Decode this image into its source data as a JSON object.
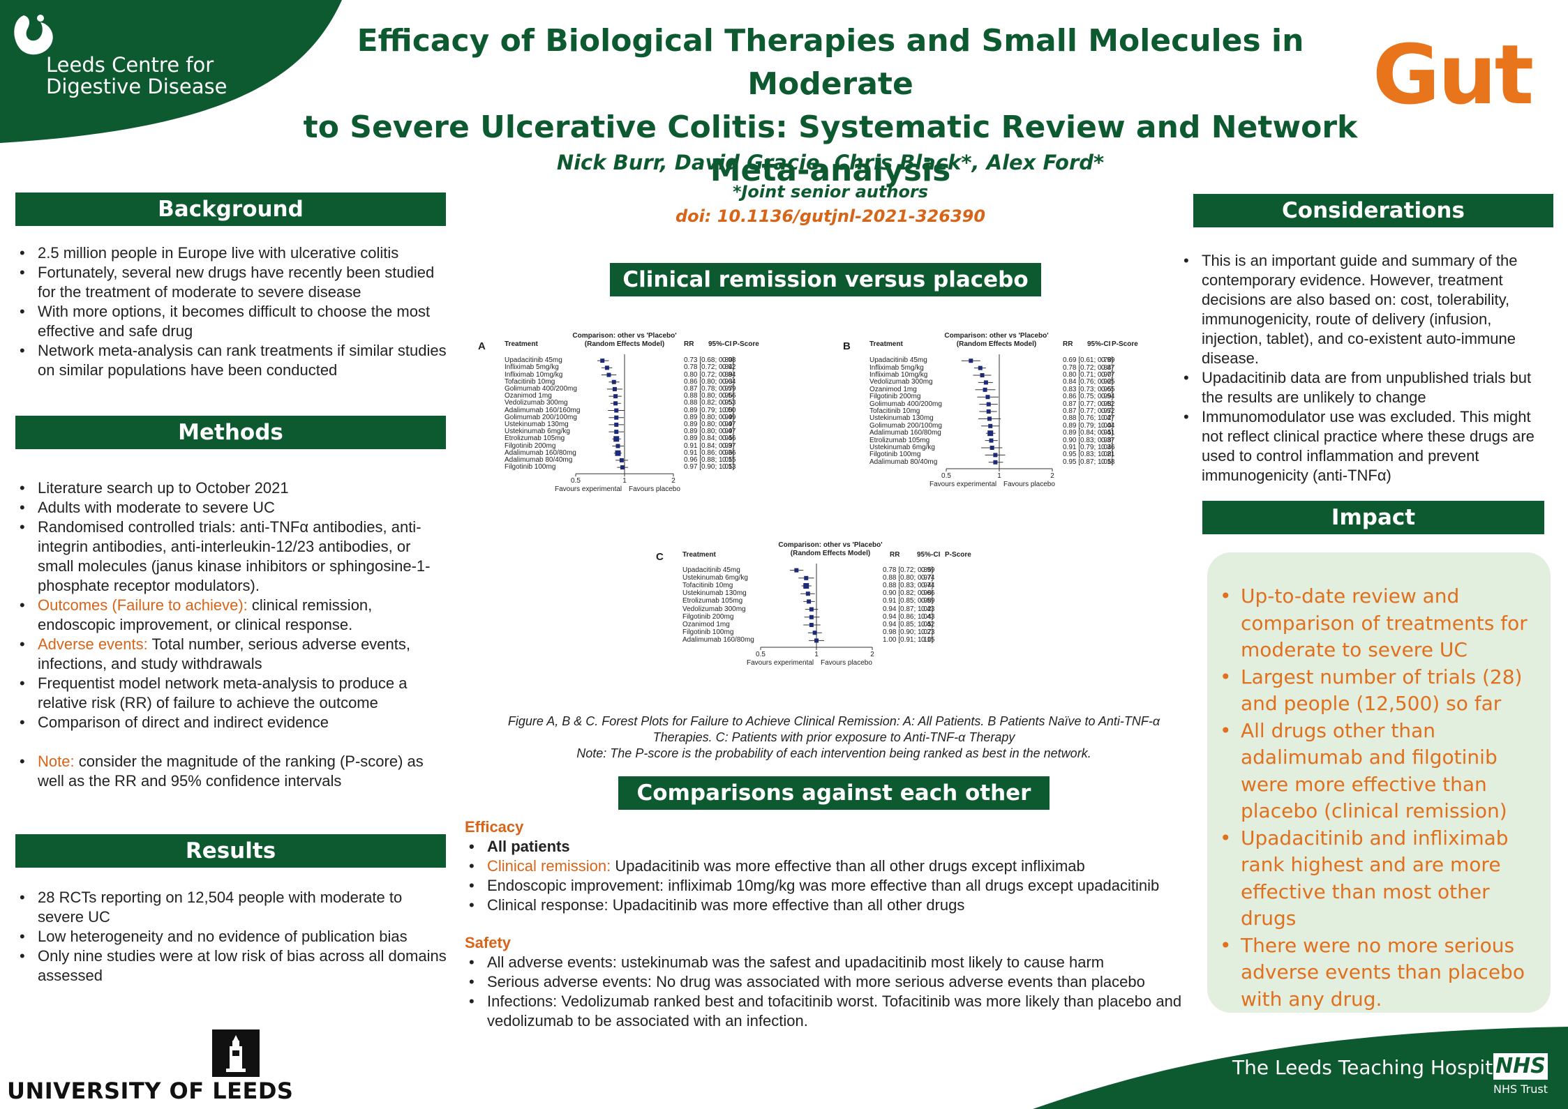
{
  "header": {
    "org": [
      "Leeds Centre for",
      "Digestive Disease"
    ],
    "title": [
      "Efficacy of Biological Therapies and Small Molecules in Moderate",
      "to Severe Ulcerative Colitis: Systematic Review and Network",
      "Meta-analysis"
    ],
    "authors": "Nick Burr, David Gracie, Chris Black*, Alex Ford*",
    "note": "*Joint senior authors",
    "doi": "doi: 10.1136/gutjnl-2021-326390",
    "journal": "Gut"
  },
  "background": {
    "title": "Background",
    "items": [
      "2.5 million people in Europe live with ulcerative colitis",
      "Fortunately, several new drugs have recently been studied for the treatment of moderate to severe disease",
      "With more options,  it becomes difficult to choose the most effective and safe drug",
      "Network meta-analysis can rank treatments if similar studies on similar populations have been conducted"
    ]
  },
  "methods": {
    "title": "Methods",
    "items": [
      {
        "lead": "",
        "text": "Literature search up to October 2021"
      },
      {
        "lead": "",
        "text": "Adults with moderate to severe UC"
      },
      {
        "lead": "",
        "text": "Randomised controlled trials: anti-TNFα antibodies, anti-integrin antibodies, anti-interleukin-12/23 antibodies, or small molecules (janus kinase inhibitors or sphingosine-1-phosphate receptor modulators)."
      },
      {
        "lead": "Outcomes (Failure to achieve):",
        "text": " clinical remission, endoscopic improvement, or clinical response."
      },
      {
        "lead": "Adverse events:",
        "text": " Total number, serious adverse events, infections, and study withdrawals"
      },
      {
        "lead": "",
        "text": "Frequentist model network meta-analysis to produce a relative risk (RR) of failure to achieve the outcome"
      },
      {
        "lead": "",
        "text": "Comparison of direct and indirect evidence"
      }
    ],
    "note_lead": "Note:",
    "note_text": " consider the magnitude of the ranking (P-score) as well as the RR and 95% confidence intervals"
  },
  "results": {
    "title": "Results",
    "items": [
      "28 RCTs reporting on 12,504 people with moderate to severe UC",
      "Low heterogeneity and no evidence of publication bias",
      "Only nine studies were at low risk of bias across all domains assessed"
    ]
  },
  "clinical": {
    "title": "Clinical remission versus placebo",
    "caption": [
      "Figure A, B & C. Forest Plots for Failure to Achieve Clinical Remission: A: All Patients. B Patients Naïve to Anti-TNF-α",
      "Therapies. C: Patients with prior exposure to Anti-TNF-α Therapy",
      "Note: The P-score is the probability of each intervention being ranked as best in the network."
    ]
  },
  "forest_common": {
    "comparison": "Comparison: other vs 'Placebo'",
    "model": "(Random Effects Model)",
    "col_treatment": "Treatment",
    "col_rr": "RR",
    "col_ci": "95%-CI",
    "col_p": "P-Score",
    "fav_exp": "Favours experimental",
    "fav_pla": "Favours placebo",
    "tick_labels": [
      "0.5",
      "1",
      "2"
    ]
  },
  "chart_data": [
    {
      "type": "forest",
      "label": "A",
      "x_scale": "log",
      "xlim": [
        0.5,
        2
      ],
      "rows": [
        {
          "t": "Upadacitinib 45mg",
          "rr": 0.73,
          "lo": 0.68,
          "hi": 0.8,
          "ci": "0.73 [0.68; 0.80]",
          "p": "0.98"
        },
        {
          "t": "Infliximab 5mg/kg",
          "rr": 0.78,
          "lo": 0.72,
          "hi": 0.84,
          "ci": "0.78 [0.72; 0.84]",
          "p": "0.92"
        },
        {
          "t": "Infliximab 10mg/kg",
          "rr": 0.8,
          "lo": 0.72,
          "hi": 0.89,
          "ci": "0.80 [0.72; 0.89]",
          "p": "0.84"
        },
        {
          "t": "Tofacitinib 10mg",
          "rr": 0.86,
          "lo": 0.8,
          "hi": 0.93,
          "ci": "0.86 [0.80; 0.93]",
          "p": "0.64"
        },
        {
          "t": "Golimumab 400/200mg",
          "rr": 0.87,
          "lo": 0.78,
          "hi": 0.97,
          "ci": "0.87 [0.78; 0.97]",
          "p": "0.59"
        },
        {
          "t": "Ozanimod 1mg",
          "rr": 0.88,
          "lo": 0.8,
          "hi": 0.96,
          "ci": "0.88 [0.80; 0.96]",
          "p": "0.56"
        },
        {
          "t": "Vedolizumab 300mg",
          "rr": 0.88,
          "lo": 0.82,
          "hi": 0.95,
          "ci": "0.88 [0.82; 0.95]",
          "p": "0.53"
        },
        {
          "t": "Adalimumab 160/160mg",
          "rr": 0.89,
          "lo": 0.79,
          "hi": 1.0,
          "ci": "0.89 [0.79; 1.00]",
          "p": "0.50"
        },
        {
          "t": "Golimumab 200/100mg",
          "rr": 0.89,
          "lo": 0.8,
          "hi": 0.99,
          "ci": "0.89 [0.80; 0.99]",
          "p": "0.49"
        },
        {
          "t": "Ustekinumab 130mg",
          "rr": 0.89,
          "lo": 0.8,
          "hi": 0.99,
          "ci": "0.89 [0.80; 0.99]",
          "p": "0.47"
        },
        {
          "t": "Ustekinumab 6mg/kg",
          "rr": 0.89,
          "lo": 0.8,
          "hi": 0.99,
          "ci": "0.89 [0.80; 0.99]",
          "p": "0.47"
        },
        {
          "t": "Etrolizumab 105mg",
          "rr": 0.89,
          "lo": 0.84,
          "hi": 0.95,
          "ci": "0.89 [0.84; 0.95]",
          "p": "0.46"
        },
        {
          "t": "Filgotinib 200mg",
          "rr": 0.91,
          "lo": 0.84,
          "hi": 0.99,
          "ci": "0.91 [0.84; 0.99]",
          "p": "0.37"
        },
        {
          "t": "Adalimumab 160/80mg",
          "rr": 0.91,
          "lo": 0.86,
          "hi": 0.96,
          "ci": "0.91 [0.86; 0.96]",
          "p": "0.36"
        },
        {
          "t": "Adalimumab 80/40mg",
          "rr": 0.96,
          "lo": 0.88,
          "hi": 1.05,
          "ci": "0.96 [0.88; 1.05]",
          "p": "0.15"
        },
        {
          "t": "Filgotinib 100mg",
          "rr": 0.97,
          "lo": 0.9,
          "hi": 1.05,
          "ci": "0.97 [0.90; 1.05]",
          "p": "0.13"
        }
      ]
    },
    {
      "type": "forest",
      "label": "B",
      "x_scale": "log",
      "xlim": [
        0.5,
        2
      ],
      "rows": [
        {
          "t": "Upadacitinib 45mg",
          "rr": 0.69,
          "lo": 0.61,
          "hi": 0.78,
          "ci": "0.69 [0.61; 0.78]",
          "p": "0.99"
        },
        {
          "t": "Infliximab 5mg/kg",
          "rr": 0.78,
          "lo": 0.72,
          "hi": 0.84,
          "ci": "0.78 [0.72; 0.84]",
          "p": "0.87"
        },
        {
          "t": "Infliximab 10mg/kg",
          "rr": 0.8,
          "lo": 0.71,
          "hi": 0.9,
          "ci": "0.80 [0.71; 0.90]",
          "p": "0.77"
        },
        {
          "t": "Vedolizumab 300mg",
          "rr": 0.84,
          "lo": 0.76,
          "hi": 0.92,
          "ci": "0.84 [0.76; 0.92]",
          "p": "0.65"
        },
        {
          "t": "Ozanimod 1mg",
          "rr": 0.83,
          "lo": 0.73,
          "hi": 0.95,
          "ci": "0.83 [0.73; 0.95]",
          "p": "0.65"
        },
        {
          "t": "Filgotinib 200mg",
          "rr": 0.86,
          "lo": 0.75,
          "hi": 0.99,
          "ci": "0.86 [0.75; 0.99]",
          "p": "0.54"
        },
        {
          "t": "Golimumab 400/200mg",
          "rr": 0.87,
          "lo": 0.77,
          "hi": 0.98,
          "ci": "0.87 [0.77; 0.98]",
          "p": "0.52"
        },
        {
          "t": "Tofacitinib 10mg",
          "rr": 0.87,
          "lo": 0.77,
          "hi": 0.97,
          "ci": "0.87 [0.77; 0.97]",
          "p": "0.52"
        },
        {
          "t": "Ustekinumab 130mg",
          "rr": 0.88,
          "lo": 0.76,
          "hi": 1.02,
          "ci": "0.88 [0.76; 1.02]",
          "p": "0.47"
        },
        {
          "t": "Golimumab 200/100mg",
          "rr": 0.89,
          "lo": 0.79,
          "hi": 1.0,
          "ci": "0.89 [0.79; 1.00]",
          "p": "0.44"
        },
        {
          "t": "Adalimumab 160/80mg",
          "rr": 0.89,
          "lo": 0.84,
          "hi": 0.95,
          "ci": "0.89 [0.84; 0.95]",
          "p": "0.41"
        },
        {
          "t": "Etrolizumab 105mg",
          "rr": 0.9,
          "lo": 0.83,
          "hi": 0.98,
          "ci": "0.90 [0.83; 0.98]",
          "p": "0.37"
        },
        {
          "t": "Ustekinumab 6mg/kg",
          "rr": 0.91,
          "lo": 0.79,
          "hi": 1.04,
          "ci": "0.91 [0.79; 1.04]",
          "p": "0.36"
        },
        {
          "t": "Filgotinib 100mg",
          "rr": 0.95,
          "lo": 0.83,
          "hi": 1.08,
          "ci": "0.95 [0.83; 1.08]",
          "p": "0.21"
        },
        {
          "t": "Adalimumab 80/40mg",
          "rr": 0.95,
          "lo": 0.87,
          "hi": 1.05,
          "ci": "0.95 [0.87; 1.05]",
          "p": "0.18"
        }
      ]
    },
    {
      "type": "forest",
      "label": "C",
      "x_scale": "log",
      "xlim": [
        0.5,
        2
      ],
      "rows": [
        {
          "t": "Upadacitinib 45mg",
          "rr": 0.78,
          "lo": 0.72,
          "hi": 0.85,
          "ci": "0.78 [0.72; 0.85]",
          "p": "0.99"
        },
        {
          "t": "Ustekinumab 6mg/kg",
          "rr": 0.88,
          "lo": 0.8,
          "hi": 0.97,
          "ci": "0.88 [0.80; 0.97]",
          "p": "0.74"
        },
        {
          "t": "Tofacitinib 10mg",
          "rr": 0.88,
          "lo": 0.83,
          "hi": 0.94,
          "ci": "0.88 [0.83; 0.94]",
          "p": "0.74"
        },
        {
          "t": "Ustekinumab 130mg",
          "rr": 0.9,
          "lo": 0.82,
          "hi": 0.98,
          "ci": "0.90 [0.82; 0.98]",
          "p": "0.66"
        },
        {
          "t": "Etrolizumab 105mg",
          "rr": 0.91,
          "lo": 0.85,
          "hi": 0.98,
          "ci": "0.91 [0.85; 0.98]",
          "p": "0.59"
        },
        {
          "t": "Vedolizumab 300mg",
          "rr": 0.94,
          "lo": 0.87,
          "hi": 1.02,
          "ci": "0.94 [0.87; 1.02]",
          "p": "0.43"
        },
        {
          "t": "Filgotinib 200mg",
          "rr": 0.94,
          "lo": 0.86,
          "hi": 1.04,
          "ci": "0.94 [0.86; 1.04]",
          "p": "0.43"
        },
        {
          "t": "Ozanimod 1mg",
          "rr": 0.94,
          "lo": 0.85,
          "hi": 1.05,
          "ci": "0.94 [0.85; 1.05]",
          "p": "0.42"
        },
        {
          "t": "Filgotinib 100mg",
          "rr": 0.98,
          "lo": 0.9,
          "hi": 1.07,
          "ci": "0.98 [0.90; 1.07]",
          "p": "0.23"
        },
        {
          "t": "Adalimumab 160/80mg",
          "rr": 1.0,
          "lo": 0.91,
          "hi": 1.1,
          "ci": "1.00 [0.91; 1.10]",
          "p": "0.15"
        }
      ]
    }
  ],
  "comparisons": {
    "title": "Comparisons against each other",
    "efficacy_title": "Efficacy",
    "all_patients": "All patients",
    "efficacy_items": [
      {
        "lead": "Clinical remission:",
        "text": " Upadacitinib was more effective than all other drugs except infliximab"
      },
      {
        "lead": "",
        "text": "Endoscopic improvement: infliximab 10mg/kg was more effective than all drugs except upadacitinib"
      },
      {
        "lead": "",
        "text": "Clinical response: Upadacitinib was more effective than all other drugs"
      }
    ],
    "safety_title": "Safety",
    "safety_items": [
      "All adverse events: ustekinumab was the safest and upadacitinib most likely to cause harm",
      "Serious adverse events: No drug was associated with more serious adverse events than placebo",
      "Infections: Vedolizumab ranked best and tofacitinib worst. Tofacitinib was more likely than placebo and vedolizumab to be associated with an infection."
    ]
  },
  "considerations": {
    "title": "Considerations",
    "items": [
      "This is an important guide and summary of the contemporary evidence. However,  treatment decisions are also based on: cost, tolerability, immunogenicity,  route of delivery (infusion, injection, tablet), and co-existent auto-immune disease.",
      "Upadacitinib data are from unpublished trials but the results are unlikely to change",
      "Immunomodulator use was excluded. This might not reflect clinical practice where these drugs are used to control inflammation and prevent immunogenicity (anti-TNFα)"
    ]
  },
  "impact": {
    "title": "Impact",
    "items": [
      "Up-to-date review and comparison of treatments for moderate to severe UC",
      "Largest number of trials (28) and people (12,500) so far",
      "All drugs other than adalimumab and filgotinib were more effective than placebo (clinical remission)",
      "Upadacitinib and infliximab rank highest and are more effective than most other drugs",
      "There were no more serious adverse events than placebo with any drug."
    ]
  },
  "footer": {
    "university": "UNIVERSITY OF LEEDS",
    "hospital": "The Leeds Teaching Hospitals",
    "nhs": "NHS",
    "trust": "NHS Trust"
  },
  "colors": {
    "green": "#0e5a30",
    "orange": "#e8741c",
    "navy": "#1c2a78",
    "impact_bg": "#e2efde"
  }
}
